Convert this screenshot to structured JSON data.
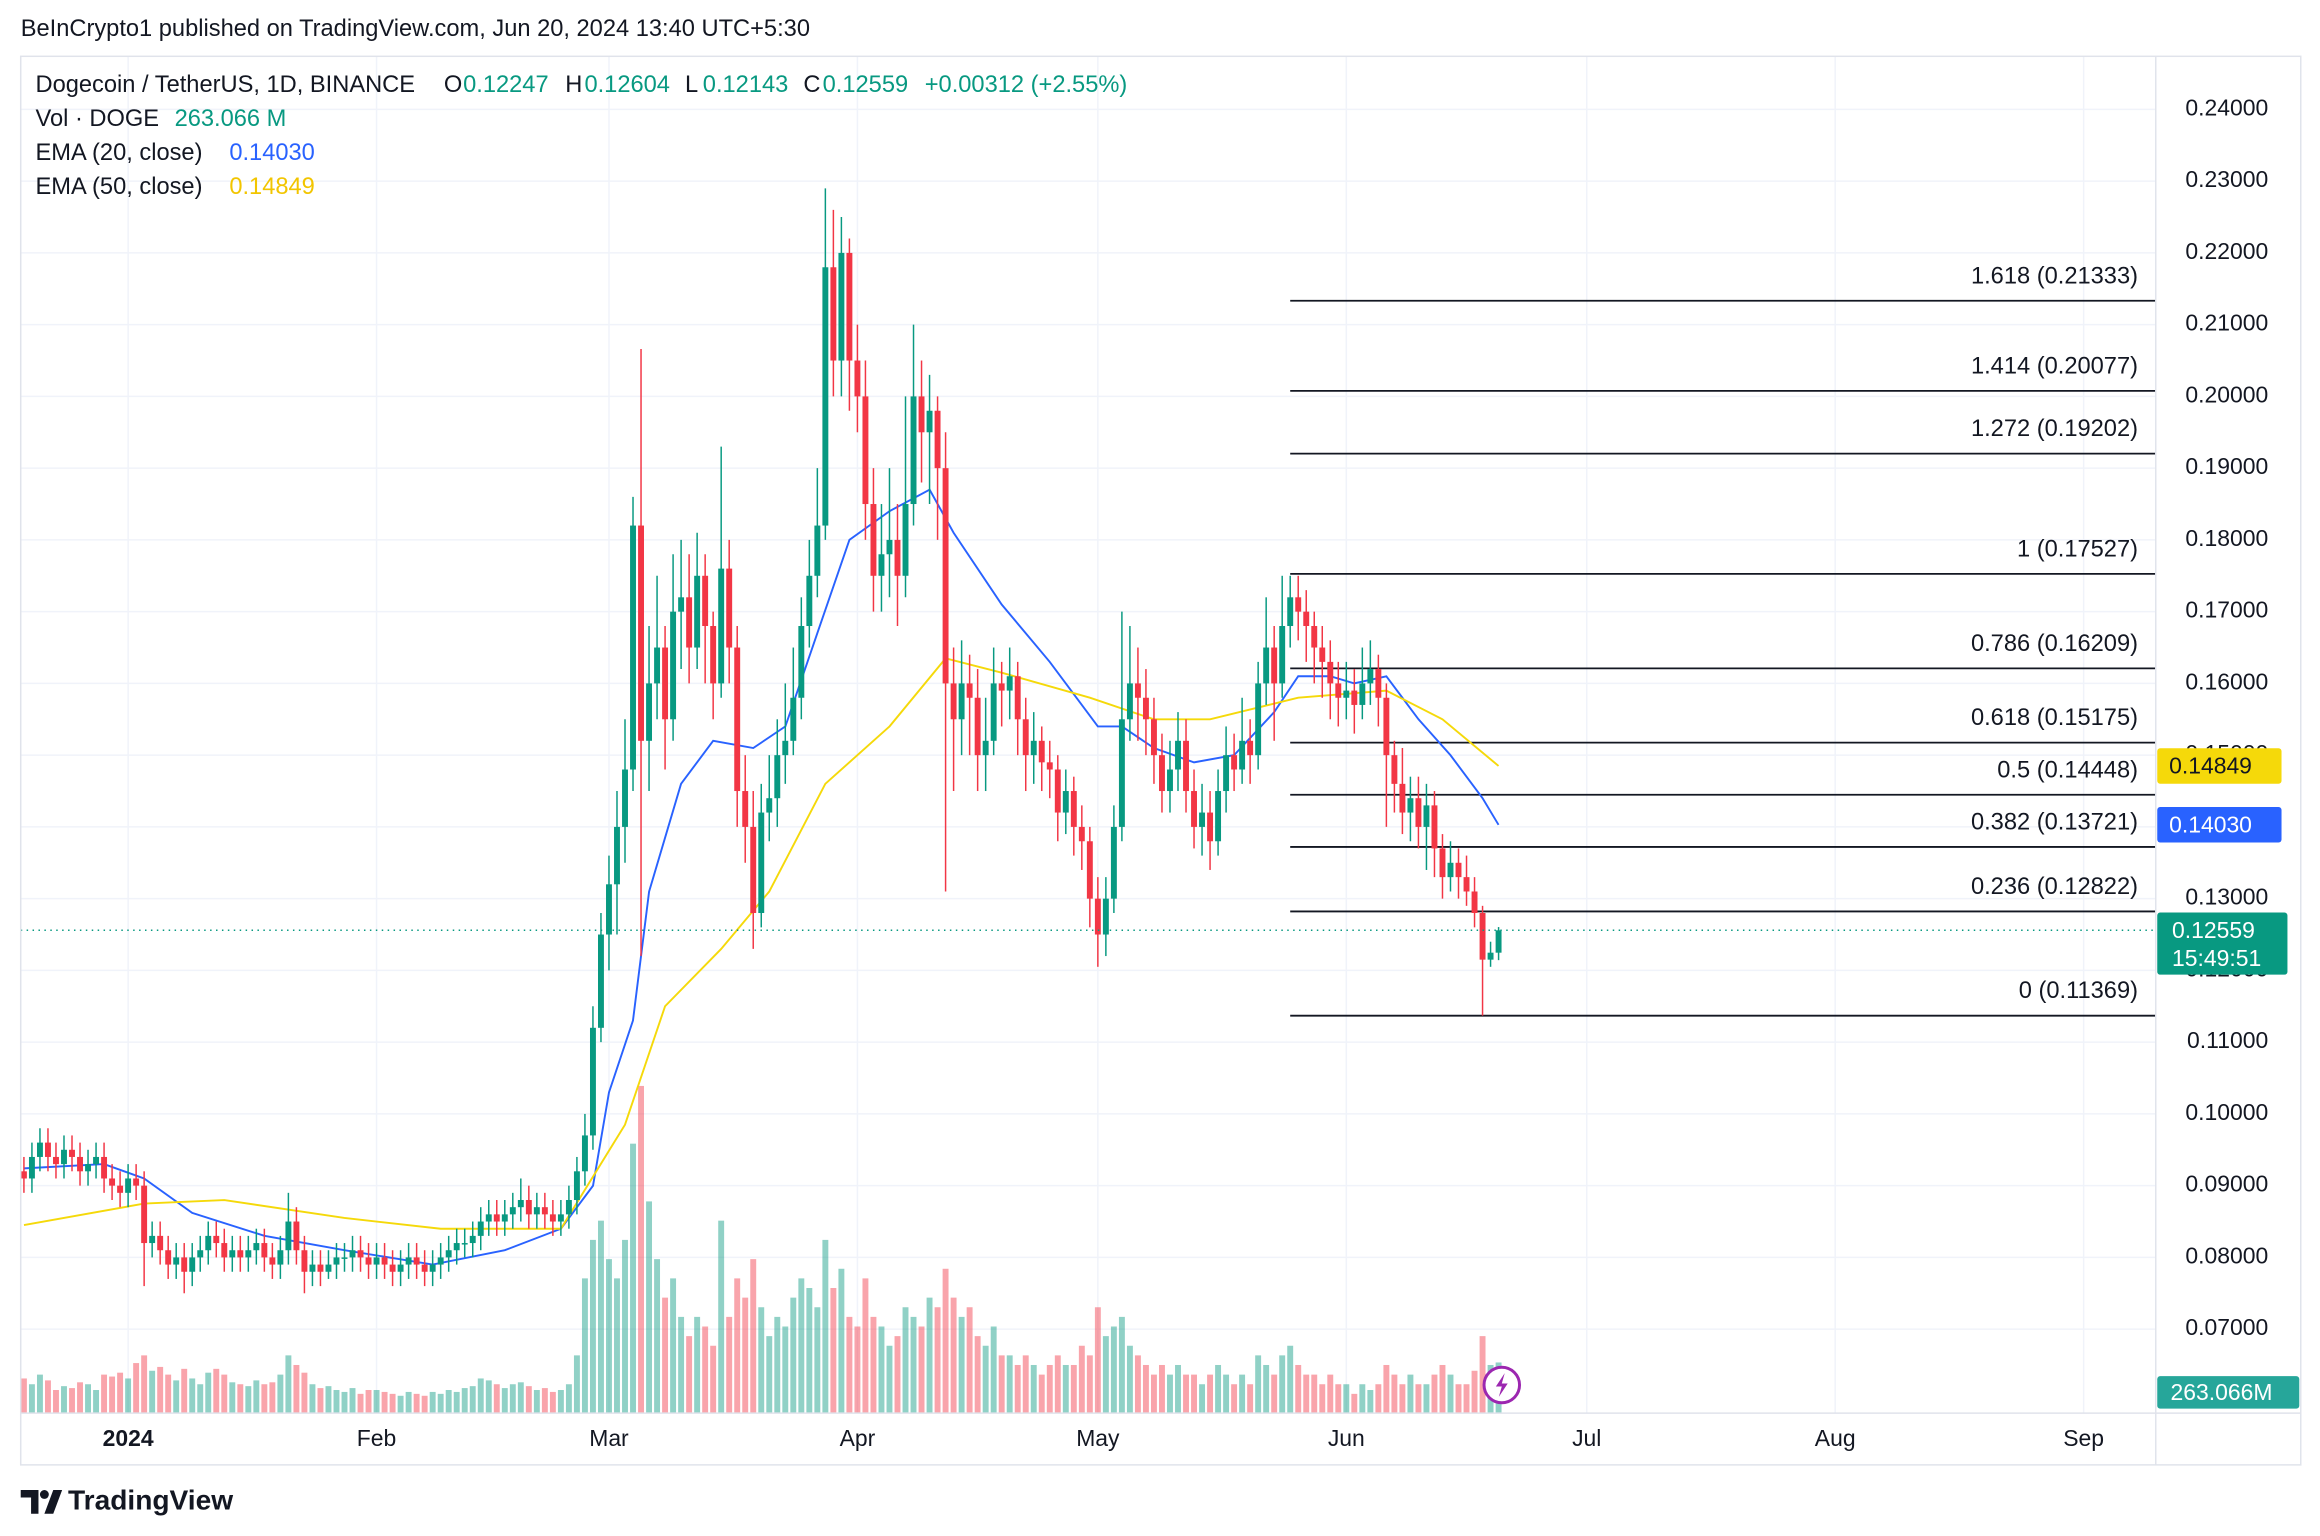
{
  "chart_data": {
    "type": "candlestick",
    "byline": "BeInCrypto1 published on TradingView.com, Jun 20, 2024 13:40 UTC+5:30",
    "title": "Dogecoin / TetherUS, 1D, BINANCE",
    "ohlc_labels": [
      "O",
      "H",
      "L",
      "C"
    ],
    "change_label": "+0.00312 (+2.55%)",
    "countdown": "15:49:51",
    "brand": "TradingView",
    "up_color": "#089981",
    "down_color": "#f23645",
    "open": [
      0.092,
      0.091,
      0.094,
      0.096,
      0.094,
      0.093,
      0.095,
      0.094,
      0.092,
      0.093,
      0.094,
      0.091,
      0.09,
      0.089,
      0.091,
      0.09,
      0.082,
      0.083,
      0.081,
      0.079,
      0.08,
      0.078,
      0.08,
      0.081,
      0.083,
      0.082,
      0.08,
      0.081,
      0.08,
      0.081,
      0.082,
      0.08,
      0.079,
      0.081,
      0.085,
      0.081,
      0.078,
      0.079,
      0.078,
      0.079,
      0.08,
      0.08,
      0.081,
      0.08,
      0.079,
      0.08,
      0.079,
      0.078,
      0.079,
      0.08,
      0.079,
      0.078,
      0.079,
      0.08,
      0.081,
      0.082,
      0.082,
      0.083,
      0.085,
      0.086,
      0.085,
      0.086,
      0.087,
      0.088,
      0.086,
      0.087,
      0.086,
      0.085,
      0.086,
      0.088,
      0.092,
      0.097,
      0.112,
      0.125,
      0.132,
      0.14,
      0.148,
      0.182,
      0.152,
      0.16,
      0.165,
      0.155,
      0.17,
      0.172,
      0.165,
      0.175,
      0.168,
      0.16,
      0.176,
      0.165,
      0.145,
      0.14,
      0.128,
      0.142,
      0.144,
      0.15,
      0.152,
      0.158,
      0.168,
      0.175,
      0.182,
      0.218,
      0.205,
      0.22,
      0.205,
      0.2,
      0.185,
      0.175,
      0.178,
      0.18,
      0.175,
      0.185,
      0.2,
      0.195,
      0.198,
      0.19,
      0.16,
      0.155,
      0.16,
      0.158,
      0.15,
      0.152,
      0.16,
      0.159,
      0.161,
      0.155,
      0.15,
      0.152,
      0.149,
      0.148,
      0.142,
      0.145,
      0.14,
      0.138,
      0.13,
      0.125,
      0.13,
      0.14,
      0.155,
      0.16,
      0.158,
      0.155,
      0.15,
      0.145,
      0.148,
      0.152,
      0.145,
      0.14,
      0.142,
      0.138,
      0.145,
      0.15,
      0.148,
      0.152,
      0.15,
      0.16,
      0.165,
      0.16,
      0.168,
      0.172,
      0.17,
      0.168,
      0.165,
      0.163,
      0.16,
      0.158,
      0.159,
      0.157,
      0.16,
      0.162,
      0.158,
      0.15,
      0.146,
      0.142,
      0.144,
      0.14,
      0.143,
      0.137,
      0.133,
      0.135,
      0.133,
      0.131,
      0.128,
      0.1215,
      0.12247
    ],
    "high": [
      0.094,
      0.096,
      0.098,
      0.098,
      0.096,
      0.097,
      0.097,
      0.096,
      0.095,
      0.096,
      0.096,
      0.093,
      0.092,
      0.093,
      0.093,
      0.092,
      0.085,
      0.085,
      0.083,
      0.082,
      0.082,
      0.082,
      0.083,
      0.085,
      0.085,
      0.084,
      0.083,
      0.083,
      0.083,
      0.084,
      0.084,
      0.082,
      0.083,
      0.089,
      0.087,
      0.083,
      0.081,
      0.081,
      0.081,
      0.082,
      0.082,
      0.083,
      0.083,
      0.082,
      0.082,
      0.082,
      0.081,
      0.081,
      0.082,
      0.082,
      0.081,
      0.081,
      0.082,
      0.083,
      0.084,
      0.084,
      0.085,
      0.087,
      0.088,
      0.088,
      0.088,
      0.089,
      0.091,
      0.09,
      0.089,
      0.089,
      0.088,
      0.088,
      0.09,
      0.094,
      0.1,
      0.115,
      0.128,
      0.136,
      0.145,
      0.155,
      0.186,
      0.2066,
      0.168,
      0.175,
      0.168,
      0.178,
      0.18,
      0.178,
      0.181,
      0.178,
      0.17,
      0.193,
      0.18,
      0.168,
      0.15,
      0.145,
      0.146,
      0.15,
      0.155,
      0.16,
      0.165,
      0.172,
      0.18,
      0.19,
      0.229,
      0.226,
      0.225,
      0.222,
      0.21,
      0.205,
      0.19,
      0.185,
      0.19,
      0.185,
      0.2,
      0.21,
      0.205,
      0.203,
      0.2,
      0.195,
      0.165,
      0.166,
      0.164,
      0.162,
      0.158,
      0.165,
      0.163,
      0.165,
      0.163,
      0.158,
      0.156,
      0.154,
      0.152,
      0.15,
      0.148,
      0.147,
      0.143,
      0.14,
      0.133,
      0.133,
      0.143,
      0.17,
      0.168,
      0.165,
      0.162,
      0.158,
      0.153,
      0.152,
      0.156,
      0.155,
      0.148,
      0.146,
      0.145,
      0.148,
      0.154,
      0.153,
      0.158,
      0.155,
      0.163,
      0.172,
      0.168,
      0.175,
      0.175,
      0.175,
      0.173,
      0.17,
      0.168,
      0.166,
      0.163,
      0.163,
      0.162,
      0.165,
      0.166,
      0.164,
      0.16,
      0.152,
      0.151,
      0.147,
      0.147,
      0.146,
      0.145,
      0.139,
      0.138,
      0.137,
      0.136,
      0.133,
      0.129,
      0.124,
      0.12604
    ],
    "low": [
      0.089,
      0.089,
      0.092,
      0.092,
      0.091,
      0.091,
      0.092,
      0.09,
      0.09,
      0.091,
      0.089,
      0.088,
      0.087,
      0.087,
      0.088,
      0.076,
      0.08,
      0.079,
      0.077,
      0.077,
      0.075,
      0.076,
      0.078,
      0.079,
      0.08,
      0.078,
      0.078,
      0.078,
      0.078,
      0.079,
      0.078,
      0.077,
      0.077,
      0.079,
      0.079,
      0.075,
      0.076,
      0.076,
      0.077,
      0.077,
      0.078,
      0.078,
      0.078,
      0.077,
      0.077,
      0.077,
      0.076,
      0.076,
      0.077,
      0.077,
      0.076,
      0.076,
      0.077,
      0.078,
      0.079,
      0.08,
      0.08,
      0.081,
      0.083,
      0.083,
      0.083,
      0.084,
      0.085,
      0.084,
      0.084,
      0.084,
      0.083,
      0.083,
      0.084,
      0.086,
      0.09,
      0.095,
      0.11,
      0.12,
      0.125,
      0.135,
      0.145,
      0.122,
      0.145,
      0.155,
      0.148,
      0.152,
      0.162,
      0.16,
      0.162,
      0.16,
      0.155,
      0.158,
      0.16,
      0.14,
      0.135,
      0.123,
      0.126,
      0.138,
      0.14,
      0.146,
      0.15,
      0.155,
      0.165,
      0.172,
      0.18,
      0.2,
      0.2,
      0.198,
      0.195,
      0.18,
      0.17,
      0.17,
      0.172,
      0.168,
      0.172,
      0.182,
      0.188,
      0.185,
      0.18,
      0.131,
      0.145,
      0.15,
      0.15,
      0.145,
      0.145,
      0.15,
      0.154,
      0.155,
      0.15,
      0.145,
      0.146,
      0.145,
      0.144,
      0.138,
      0.139,
      0.136,
      0.134,
      0.126,
      0.1205,
      0.122,
      0.128,
      0.138,
      0.152,
      0.152,
      0.15,
      0.146,
      0.142,
      0.142,
      0.145,
      0.142,
      0.137,
      0.136,
      0.134,
      0.136,
      0.142,
      0.145,
      0.146,
      0.146,
      0.148,
      0.157,
      0.152,
      0.158,
      0.165,
      0.166,
      0.163,
      0.16,
      0.158,
      0.155,
      0.154,
      0.155,
      0.153,
      0.155,
      0.157,
      0.154,
      0.14,
      0.142,
      0.139,
      0.138,
      0.137,
      0.134,
      0.133,
      0.13,
      0.131,
      0.13,
      0.129,
      0.126,
      0.1137,
      0.1205,
      0.12143
    ],
    "close": [
      0.091,
      0.094,
      0.096,
      0.094,
      0.093,
      0.095,
      0.094,
      0.092,
      0.093,
      0.094,
      0.091,
      0.09,
      0.089,
      0.091,
      0.09,
      0.082,
      0.083,
      0.081,
      0.079,
      0.08,
      0.078,
      0.08,
      0.081,
      0.083,
      0.082,
      0.08,
      0.081,
      0.08,
      0.081,
      0.082,
      0.08,
      0.079,
      0.081,
      0.085,
      0.081,
      0.078,
      0.079,
      0.078,
      0.079,
      0.08,
      0.08,
      0.081,
      0.08,
      0.079,
      0.08,
      0.079,
      0.078,
      0.079,
      0.08,
      0.079,
      0.078,
      0.079,
      0.08,
      0.081,
      0.082,
      0.082,
      0.083,
      0.085,
      0.086,
      0.085,
      0.086,
      0.087,
      0.088,
      0.086,
      0.087,
      0.086,
      0.085,
      0.086,
      0.088,
      0.092,
      0.097,
      0.112,
      0.125,
      0.132,
      0.14,
      0.148,
      0.182,
      0.152,
      0.16,
      0.165,
      0.155,
      0.17,
      0.172,
      0.165,
      0.175,
      0.168,
      0.16,
      0.176,
      0.165,
      0.145,
      0.14,
      0.128,
      0.142,
      0.144,
      0.15,
      0.152,
      0.158,
      0.168,
      0.175,
      0.182,
      0.218,
      0.205,
      0.22,
      0.205,
      0.2,
      0.185,
      0.175,
      0.178,
      0.18,
      0.175,
      0.185,
      0.2,
      0.195,
      0.198,
      0.19,
      0.16,
      0.155,
      0.16,
      0.158,
      0.15,
      0.152,
      0.16,
      0.159,
      0.161,
      0.155,
      0.15,
      0.152,
      0.149,
      0.148,
      0.142,
      0.145,
      0.14,
      0.138,
      0.13,
      0.125,
      0.13,
      0.14,
      0.155,
      0.16,
      0.158,
      0.155,
      0.15,
      0.145,
      0.148,
      0.152,
      0.145,
      0.14,
      0.142,
      0.138,
      0.145,
      0.15,
      0.148,
      0.152,
      0.15,
      0.16,
      0.165,
      0.16,
      0.168,
      0.172,
      0.17,
      0.168,
      0.165,
      0.163,
      0.16,
      0.158,
      0.159,
      0.157,
      0.16,
      0.162,
      0.158,
      0.15,
      0.146,
      0.142,
      0.144,
      0.14,
      0.143,
      0.137,
      0.133,
      0.135,
      0.133,
      0.131,
      0.128,
      0.1215,
      0.12247,
      0.12559
    ],
    "volume": {
      "name": "Vol · DOGE",
      "last_label": "263.066 M",
      "tag_label": "263.066M",
      "vlim": [
        0,
        7050
      ],
      "values": [
        180,
        150,
        200,
        170,
        120,
        140,
        130,
        160,
        150,
        120,
        200,
        190,
        210,
        180,
        260,
        300,
        220,
        240,
        200,
        170,
        230,
        180,
        150,
        210,
        230,
        200,
        160,
        150,
        140,
        170,
        150,
        160,
        200,
        300,
        250,
        210,
        150,
        130,
        140,
        120,
        110,
        130,
        100,
        120,
        120,
        110,
        100,
        90,
        110,
        100,
        90,
        110,
        100,
        120,
        110,
        130,
        140,
        180,
        170,
        150,
        130,
        150,
        160,
        140,
        120,
        130,
        110,
        120,
        150,
        300,
        700,
        900,
        1000,
        800,
        700,
        900,
        1400,
        1700,
        1100,
        800,
        600,
        700,
        500,
        400,
        500,
        450,
        350,
        1000,
        500,
        700,
        600,
        800,
        550,
        400,
        500,
        450,
        600,
        700,
        650,
        550,
        900,
        650,
        750,
        500,
        450,
        700,
        500,
        450,
        350,
        400,
        550,
        500,
        450,
        600,
        550,
        750,
        600,
        500,
        550,
        400,
        350,
        450,
        300,
        300,
        250,
        300,
        250,
        200,
        250,
        300,
        250,
        250,
        350,
        300,
        550,
        400,
        450,
        500,
        350,
        300,
        250,
        200,
        250,
        200,
        250,
        200,
        200,
        150,
        200,
        250,
        200,
        150,
        200,
        150,
        300,
        250,
        200,
        300,
        350,
        250,
        200,
        200,
        150,
        200,
        150,
        150,
        100,
        150,
        120,
        150,
        250,
        200,
        150,
        200,
        150,
        150,
        200,
        250,
        200,
        150,
        150,
        220,
        400,
        250,
        263.066
      ]
    },
    "series": [
      {
        "name": "EMA (20, close)",
        "color": "#2962ff",
        "last_label": "0.14030",
        "x": [
          0,
          10,
          15,
          21,
          30,
          40,
          51,
          60,
          67,
          71,
          73,
          76,
          78,
          82,
          86,
          91,
          95,
          99,
          103,
          108,
          113,
          116,
          122,
          128,
          134,
          137,
          141,
          146,
          151,
          156,
          159,
          163,
          166,
          170,
          174,
          178,
          182,
          184
        ],
        "values": [
          0.0924,
          0.093,
          0.091,
          0.0862,
          0.083,
          0.081,
          0.079,
          0.081,
          0.084,
          0.09,
          0.103,
          0.113,
          0.131,
          0.146,
          0.152,
          0.151,
          0.154,
          0.167,
          0.18,
          0.184,
          0.187,
          0.181,
          0.171,
          0.163,
          0.154,
          0.154,
          0.151,
          0.149,
          0.15,
          0.156,
          0.161,
          0.161,
          0.16,
          0.161,
          0.155,
          0.15,
          0.144,
          0.1403
        ]
      },
      {
        "name": "EMA (50, close)",
        "color": "#f5d90a",
        "x": [
          0,
          15,
          25,
          40,
          52,
          67,
          75,
          80,
          87,
          93,
          100,
          108,
          115,
          122,
          133,
          141,
          148,
          159,
          170,
          177,
          184
        ],
        "values": [
          0.0845,
          0.0875,
          0.088,
          0.0855,
          0.084,
          0.084,
          0.0985,
          0.115,
          0.123,
          0.131,
          0.146,
          0.154,
          0.1635,
          0.1615,
          0.158,
          0.155,
          0.155,
          0.158,
          0.159,
          0.155,
          0.14849
        ]
      }
    ],
    "fib": {
      "x_start": 158,
      "levels": [
        {
          "value": 0.21333,
          "label": "1.618 (0.21333)"
        },
        {
          "value": 0.20077,
          "label": "1.414 (0.20077)"
        },
        {
          "value": 0.19202,
          "label": "1.272 (0.19202)"
        },
        {
          "value": 0.17527,
          "label": "1 (0.17527)"
        },
        {
          "value": 0.16209,
          "label": "0.786 (0.16209)"
        },
        {
          "value": 0.15175,
          "label": "0.618 (0.15175)"
        },
        {
          "value": 0.14448,
          "label": "0.5 (0.14448)"
        },
        {
          "value": 0.13721,
          "label": "0.382 (0.13721)"
        },
        {
          "value": 0.12822,
          "label": "0.236 (0.12822)"
        },
        {
          "value": 0.11369,
          "label": "0 (0.11369)"
        }
      ]
    },
    "xlim": [
      -0.4,
      266
    ],
    "xticks": [
      {
        "value": 13,
        "label": "2024"
      },
      {
        "value": 44,
        "label": "Feb"
      },
      {
        "value": 73,
        "label": "Mar"
      },
      {
        "value": 104,
        "label": "Apr"
      },
      {
        "value": 134,
        "label": "May"
      },
      {
        "value": 165,
        "label": "Jun"
      },
      {
        "value": 195,
        "label": "Jul"
      },
      {
        "value": 226,
        "label": "Aug"
      },
      {
        "value": 257,
        "label": "Sep"
      }
    ],
    "ylim": [
      0.0583,
      0.2474
    ],
    "yticks": [
      {
        "value": 0.07,
        "label": "0.07000"
      },
      {
        "value": 0.08,
        "label": "0.08000"
      },
      {
        "value": 0.09,
        "label": "0.09000"
      },
      {
        "value": 0.1,
        "label": "0.10000"
      },
      {
        "value": 0.11,
        "label": "0.11000"
      },
      {
        "value": 0.12,
        "label": "0.12000"
      },
      {
        "value": 0.13,
        "label": "0.13000"
      },
      {
        "value": 0.14,
        "label": "0.14000"
      },
      {
        "value": 0.15,
        "label": "0.15000"
      },
      {
        "value": 0.16,
        "label": "0.16000"
      },
      {
        "value": 0.17,
        "label": "0.17000"
      },
      {
        "value": 0.18,
        "label": "0.18000"
      },
      {
        "value": 0.19,
        "label": "0.19000"
      },
      {
        "value": 0.2,
        "label": "0.20000"
      },
      {
        "value": 0.21,
        "label": "0.21000"
      },
      {
        "value": 0.22,
        "label": "0.22000"
      },
      {
        "value": 0.23,
        "label": "0.23000"
      },
      {
        "value": 0.24,
        "label": "0.24000"
      }
    ],
    "grid": true
  }
}
